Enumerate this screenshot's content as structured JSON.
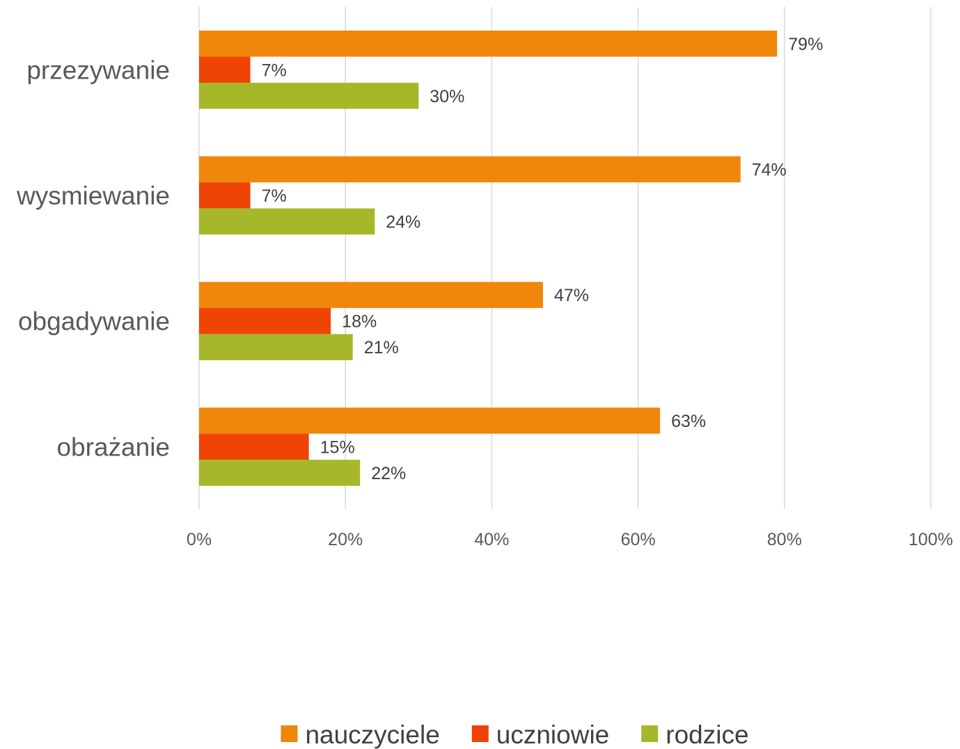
{
  "chart_data": {
    "type": "bar",
    "orientation": "horizontal",
    "categories": [
      "przezywanie",
      "wysmiewanie",
      "obgadywanie",
      "obrażanie"
    ],
    "series": [
      {
        "name": "nauczyciele",
        "color": "#f0860a",
        "values": [
          79,
          74,
          47,
          63
        ],
        "labels": [
          "79%",
          "74%",
          "47%",
          "63%"
        ]
      },
      {
        "name": "uczniowie",
        "color": "#ef4405",
        "values": [
          7,
          7,
          18,
          15
        ],
        "labels": [
          "7%",
          "7%",
          "18%",
          "15%"
        ]
      },
      {
        "name": "rodzice",
        "color": "#a6b729",
        "values": [
          30,
          24,
          21,
          22
        ],
        "labels": [
          "30%",
          "24%",
          "21%",
          "22%"
        ]
      }
    ],
    "xlim": [
      0,
      100
    ],
    "x_ticks": [
      0,
      20,
      40,
      60,
      80,
      100
    ],
    "x_tick_labels": [
      "0%",
      "20%",
      "40%",
      "60%",
      "80%",
      "100%"
    ],
    "grid": "vertical",
    "legend_position": "bottom",
    "title": "",
    "xlabel": "",
    "ylabel": ""
  }
}
